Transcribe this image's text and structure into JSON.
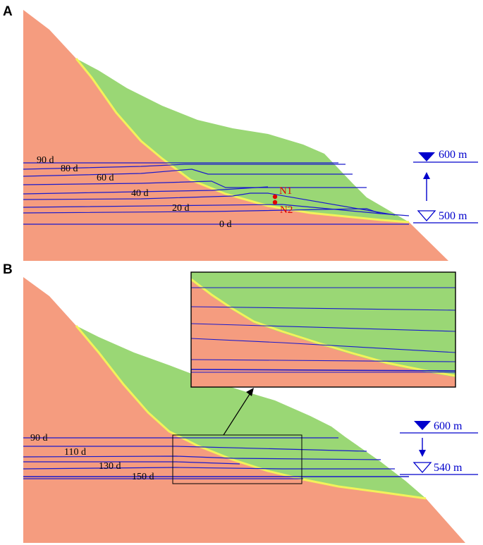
{
  "panel_a": {
    "letter": "A",
    "day_labels": [
      "90 d",
      "80 d",
      "60 d",
      "40 d",
      "20 d",
      "0 d"
    ],
    "nodes": [
      "N1",
      "N2"
    ],
    "water_level_top": "600 m",
    "water_level_bottom": "500 m"
  },
  "panel_b": {
    "letter": "B",
    "day_labels": [
      "90 d",
      "110 d",
      "130 d",
      "150 d"
    ],
    "water_level_top": "600 m",
    "water_level_bottom": "540 m"
  },
  "colors": {
    "bedrock": "#f59c7f",
    "landslide": "#9ad775",
    "slip_zone": "#f2f25a",
    "seepage_line": "#1a1acc",
    "level_marker": "#0000cc",
    "node": "#e00000"
  }
}
